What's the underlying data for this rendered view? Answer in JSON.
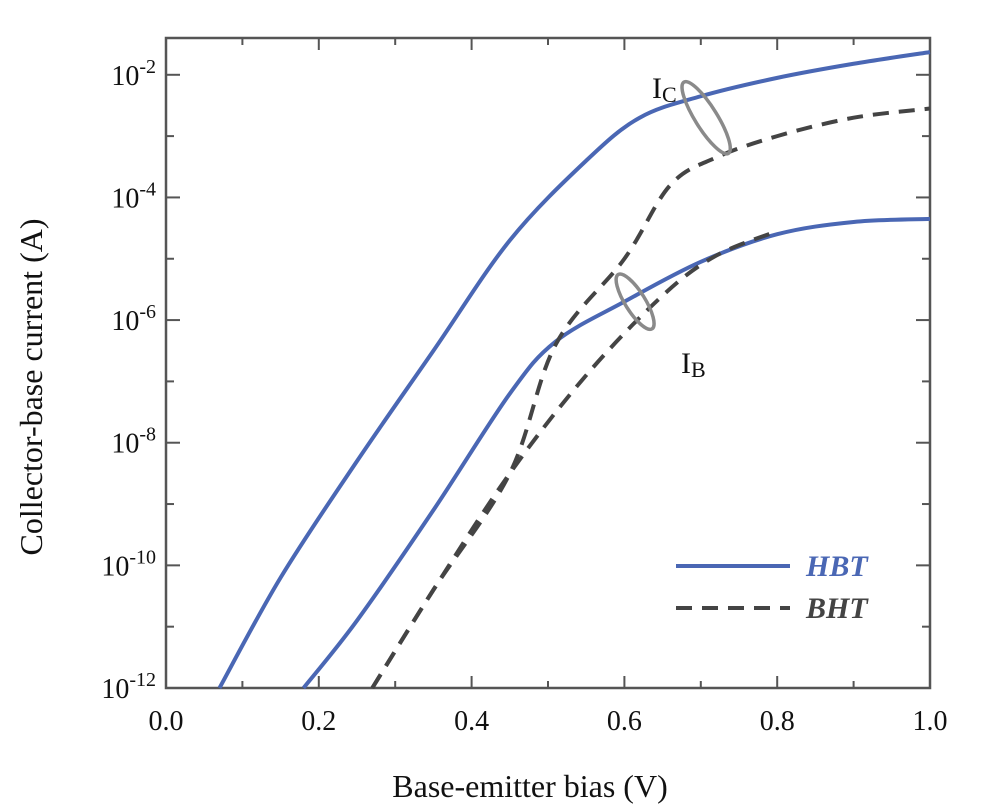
{
  "chart_data": {
    "type": "line",
    "xlabel": "Base-emitter bias (V)",
    "ylabel": "Collector-base current (A)",
    "xlim": [
      0.0,
      1.0
    ],
    "ylim_exponent": [
      -12,
      -1.4
    ],
    "y_scale": "log",
    "x_ticks": [
      "0.0",
      "0.2",
      "0.4",
      "0.6",
      "0.8",
      "1.0"
    ],
    "y_ticks": [
      {
        "base": "10",
        "exp": "-12"
      },
      {
        "base": "10",
        "exp": "-10"
      },
      {
        "base": "10",
        "exp": "-8"
      },
      {
        "base": "10",
        "exp": "-6"
      },
      {
        "base": "10",
        "exp": "-4"
      },
      {
        "base": "10",
        "exp": "-2"
      }
    ],
    "series": [
      {
        "name": "HBT",
        "curve": "IC",
        "style": "solid",
        "color": "#4a67b4",
        "points": [
          [
            0.07,
            -12.0
          ],
          [
            0.15,
            -10.2
          ],
          [
            0.25,
            -8.3
          ],
          [
            0.35,
            -6.5
          ],
          [
            0.45,
            -4.7
          ],
          [
            0.55,
            -3.4
          ],
          [
            0.62,
            -2.7
          ],
          [
            0.7,
            -2.35
          ],
          [
            0.8,
            -2.05
          ],
          [
            0.9,
            -1.82
          ],
          [
            1.0,
            -1.63
          ]
        ]
      },
      {
        "name": "HBT",
        "curve": "IB",
        "style": "solid",
        "color": "#4a67b4",
        "points": [
          [
            0.18,
            -12.0
          ],
          [
            0.25,
            -10.9
          ],
          [
            0.35,
            -9.1
          ],
          [
            0.45,
            -7.2
          ],
          [
            0.51,
            -6.35
          ],
          [
            0.6,
            -5.7
          ],
          [
            0.7,
            -5.05
          ],
          [
            0.8,
            -4.6
          ],
          [
            0.9,
            -4.4
          ],
          [
            1.0,
            -4.35
          ]
        ]
      },
      {
        "name": "BHT",
        "curve": "IC",
        "style": "dashed",
        "color": "#444444",
        "points": [
          [
            0.27,
            -12.0
          ],
          [
            0.35,
            -10.4
          ],
          [
            0.45,
            -8.5
          ],
          [
            0.51,
            -6.4
          ],
          [
            0.6,
            -5.0
          ],
          [
            0.66,
            -3.8
          ],
          [
            0.72,
            -3.35
          ],
          [
            0.8,
            -3.0
          ],
          [
            0.9,
            -2.7
          ],
          [
            1.0,
            -2.55
          ]
        ]
      },
      {
        "name": "BHT",
        "curve": "IB",
        "style": "dashed",
        "color": "#444444",
        "points": [
          [
            0.27,
            -12.0
          ],
          [
            0.35,
            -10.4
          ],
          [
            0.45,
            -8.5
          ],
          [
            0.55,
            -6.9
          ],
          [
            0.65,
            -5.6
          ],
          [
            0.72,
            -4.95
          ],
          [
            0.8,
            -4.55
          ]
        ]
      }
    ],
    "annotations": [
      {
        "main": "I",
        "sub": "C",
        "target": "IC curves"
      },
      {
        "main": "I",
        "sub": "B",
        "target": "IB curves"
      }
    ],
    "legend": [
      {
        "label": "HBT",
        "style": "solid",
        "color": "#4a67b4"
      },
      {
        "label": "BHT",
        "style": "dashed",
        "color": "#444444"
      }
    ],
    "legend_position": "bottom-right",
    "grid": false
  }
}
